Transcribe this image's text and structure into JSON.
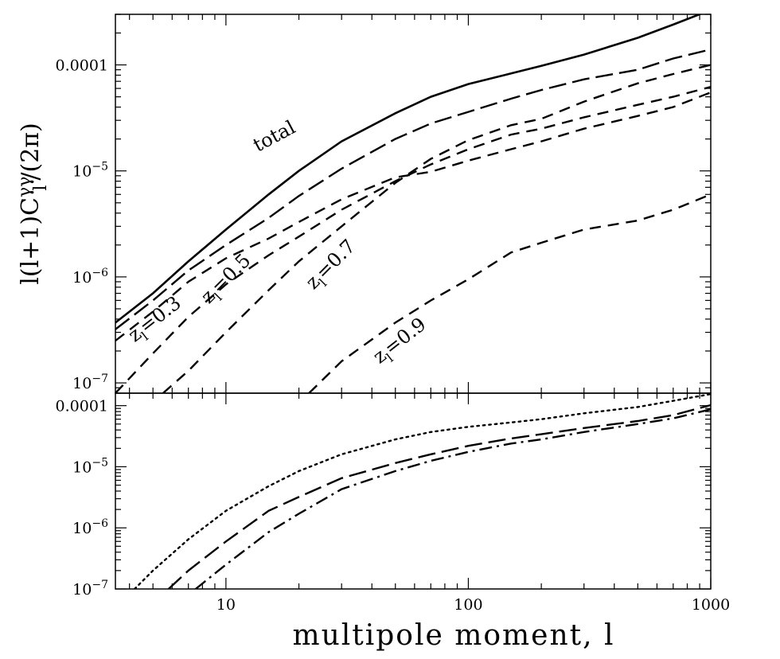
{
  "chart_data": [
    {
      "type": "line",
      "panel": "top",
      "xscale": "log",
      "yscale": "log",
      "xlim": [
        3.5,
        1000
      ],
      "ylim": [
        8e-08,
        0.0003
      ],
      "ylabel": "l(l+1)C",
      "ylabel_sub": "l",
      "ylabel_sup": "γγ",
      "ylabel_tail": "/(2π)",
      "yticks": [
        {
          "value": 1e-07,
          "base": "10",
          "exp": "−7"
        },
        {
          "value": 1e-06,
          "base": "10",
          "exp": "−6"
        },
        {
          "value": 1e-05,
          "base": "10",
          "exp": "−5"
        },
        {
          "value": 0.0001,
          "plain": "0.0001"
        }
      ],
      "grid": false,
      "legend": "none",
      "series": [
        {
          "name": "total",
          "style": "solid",
          "label": "total",
          "x": [
            3.5,
            5,
            7,
            10,
            15,
            20,
            30,
            50,
            70,
            100,
            150,
            200,
            300,
            500,
            700,
            1000
          ],
          "y": [
            3.7e-07,
            7e-07,
            1.4e-06,
            2.8e-06,
            6e-06,
            1e-05,
            1.9e-05,
            3.5e-05,
            5e-05,
            6.6e-05,
            8.3e-05,
            9.8e-05,
            0.000125,
            0.00018,
            0.00024,
            0.00033
          ]
        },
        {
          "name": "z_l=0.3",
          "style": "dashed",
          "label_main": "z",
          "label_sub": "l",
          "label_tail": "=0.3",
          "x": [
            3.5,
            5,
            7,
            10,
            15,
            20,
            30,
            50,
            70,
            100,
            150,
            200,
            300,
            500,
            700,
            1000
          ],
          "y": [
            2.5e-07,
            4.7e-07,
            9e-07,
            1.5e-06,
            2.3e-06,
            3.3e-06,
            5.4e-06,
            8.7e-06,
            9.8e-06,
            1.25e-05,
            1.6e-05,
            1.9e-05,
            2.5e-05,
            3.3e-05,
            4e-05,
            5.5e-05
          ]
        },
        {
          "name": "z_l=0.5",
          "style": "dashed",
          "label_main": "z",
          "label_sub": "l",
          "label_tail": "=0.5",
          "x": [
            3.5,
            5,
            7,
            10,
            15,
            20,
            30,
            50,
            70,
            100,
            150,
            200,
            300,
            500,
            700,
            1000
          ],
          "y": [
            8e-08,
            1.9e-07,
            4.2e-07,
            8.5e-07,
            1.6e-06,
            2.4e-06,
            4.3e-06,
            8e-06,
            1.15e-05,
            1.6e-05,
            2.2e-05,
            2.5e-05,
            3.2e-05,
            4.2e-05,
            5e-05,
            6.2e-05
          ]
        },
        {
          "name": "z_l=0.7",
          "style": "dashed",
          "label_main": "z",
          "label_sub": "l",
          "label_tail": "=0.7",
          "x": [
            5.5,
            7,
            10,
            15,
            20,
            30,
            50,
            70,
            100,
            150,
            200,
            300,
            500,
            700,
            1000
          ],
          "y": [
            8e-08,
            1.3e-07,
            3e-07,
            7.5e-07,
            1.4e-06,
            3e-06,
            7.7e-06,
            1.3e-05,
            1.95e-05,
            2.7e-05,
            3.1e-05,
            4.5e-05,
            6.7e-05,
            8.2e-05,
            0.0001
          ]
        },
        {
          "name": "z_l=0.9",
          "style": "dashed",
          "label_main": "z",
          "label_sub": "l",
          "label_tail": "=0.9",
          "x": [
            22,
            30,
            50,
            70,
            100,
            150,
            200,
            300,
            500,
            700,
            1000
          ],
          "y": [
            8e-08,
            1.6e-07,
            3.7e-07,
            6e-07,
            9.5e-07,
            1.7e-06,
            2.1e-06,
            2.8e-06,
            3.4e-06,
            4.3e-06,
            6e-06
          ]
        },
        {
          "name": "top_long_dash",
          "style": "longdash",
          "x": [
            3.5,
            5,
            7,
            10,
            15,
            20,
            30,
            50,
            70,
            100,
            150,
            200,
            300,
            500,
            700,
            1000
          ],
          "y": [
            3.2e-07,
            6e-07,
            1.15e-06,
            2e-06,
            3.6e-06,
            5.8e-06,
            1.05e-05,
            2e-05,
            2.8e-05,
            3.6e-05,
            4.8e-05,
            5.8e-05,
            7.3e-05,
            9e-05,
            0.000115,
            0.00014
          ]
        }
      ]
    },
    {
      "type": "line",
      "panel": "bottom",
      "xscale": "log",
      "yscale": "log",
      "xlim": [
        3.5,
        1000
      ],
      "ylim": [
        1e-07,
        0.00016
      ],
      "xlabel": "multipole moment, l",
      "xticks": [
        {
          "value": 10,
          "text": "10"
        },
        {
          "value": 100,
          "text": "100"
        },
        {
          "value": 1000,
          "text": "1000"
        }
      ],
      "yticks": [
        {
          "value": 1e-07,
          "base": "10",
          "exp": "−7"
        },
        {
          "value": 1e-06,
          "base": "10",
          "exp": "−6"
        },
        {
          "value": 1e-05,
          "base": "10",
          "exp": "−5"
        },
        {
          "value": 0.0001,
          "plain": "0.0001"
        }
      ],
      "grid": false,
      "legend": "none",
      "series": [
        {
          "style": "dotted",
          "x": [
            4.2,
            5,
            7,
            10,
            15,
            20,
            30,
            50,
            70,
            100,
            150,
            200,
            300,
            500,
            700,
            1000
          ],
          "y": [
            1e-07,
            2e-07,
            6.5e-07,
            1.9e-06,
            4.8e-06,
            8.5e-06,
            1.6e-05,
            2.8e-05,
            3.7e-05,
            4.5e-05,
            5.3e-05,
            6e-05,
            7.5e-05,
            9.5e-05,
            0.00012,
            0.000155
          ]
        },
        {
          "style": "longdash",
          "x": [
            5.8,
            7,
            10,
            15,
            20,
            30,
            50,
            70,
            100,
            150,
            200,
            300,
            500,
            700,
            1000
          ],
          "y": [
            1e-07,
            2e-07,
            6e-07,
            1.9e-06,
            3.2e-06,
            6.5e-06,
            1.15e-05,
            1.6e-05,
            2.2e-05,
            2.9e-05,
            3.4e-05,
            4.3e-05,
            5.6e-05,
            7e-05,
            0.000102
          ]
        },
        {
          "style": "dashdot",
          "x": [
            7.5,
            10,
            15,
            20,
            30,
            50,
            70,
            100,
            150,
            200,
            300,
            500,
            700,
            1000
          ],
          "y": [
            1e-07,
            2.5e-07,
            8.5e-07,
            1.7e-06,
            4.3e-06,
            8.5e-06,
            1.25e-05,
            1.75e-05,
            2.4e-05,
            2.8e-05,
            3.7e-05,
            5e-05,
            6.2e-05,
            8.7e-05
          ]
        }
      ]
    }
  ]
}
